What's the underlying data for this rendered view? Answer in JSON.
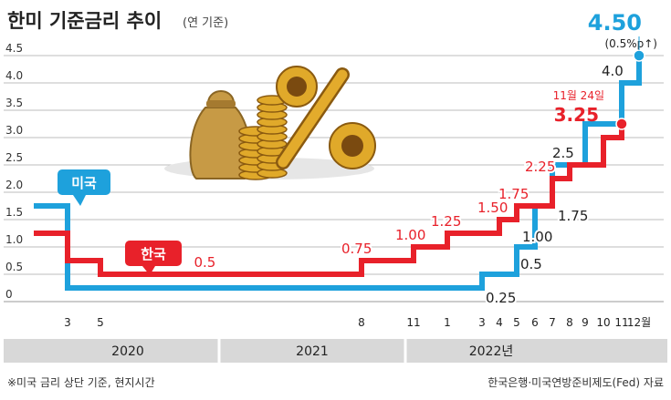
{
  "header": {
    "title": "한미 기준금리 추이",
    "unit": "(연 기준)"
  },
  "chart_data": {
    "type": "line",
    "step": true,
    "ylim": [
      0,
      4.5
    ],
    "y_ticks": [
      "0",
      "0.5",
      "1.0",
      "1.5",
      "2.0",
      "2.5",
      "3.0",
      "3.5",
      "4.0",
      "4.5"
    ],
    "x_month_ticks": [
      {
        "label": "3",
        "t": "2020-03"
      },
      {
        "label": "5",
        "t": "2020-05"
      },
      {
        "label": "8",
        "t": "2021-08"
      },
      {
        "label": "11",
        "t": "2021-11"
      },
      {
        "label": "1",
        "t": "2022-01"
      },
      {
        "label": "3",
        "t": "2022-03"
      },
      {
        "label": "4",
        "t": "2022-04"
      },
      {
        "label": "5",
        "t": "2022-05"
      },
      {
        "label": "6",
        "t": "2022-06"
      },
      {
        "label": "7",
        "t": "2022-07"
      },
      {
        "label": "8",
        "t": "2022-08"
      },
      {
        "label": "9",
        "t": "2022-09"
      },
      {
        "label": "10",
        "t": "2022-10"
      },
      {
        "label": "11",
        "t": "2022-11"
      },
      {
        "label": "12월",
        "t": "2022-12"
      }
    ],
    "year_labels": [
      "2020",
      "2021",
      "2022년"
    ],
    "series": [
      {
        "name": "미국",
        "color": "#1ea1dc",
        "points": [
          {
            "t": "2020-01",
            "v": 1.75
          },
          {
            "t": "2020-03",
            "v": 0.25
          },
          {
            "t": "2022-03",
            "v": 0.5
          },
          {
            "t": "2022-05",
            "v": 1.0
          },
          {
            "t": "2022-06",
            "v": 1.75
          },
          {
            "t": "2022-07",
            "v": 2.5
          },
          {
            "t": "2022-09",
            "v": 3.25
          },
          {
            "t": "2022-11",
            "v": 4.0
          },
          {
            "t": "2022-12",
            "v": 4.5
          }
        ],
        "value_labels": [
          {
            "t": "2022-03",
            "v": 0.25,
            "text": "0.25"
          },
          {
            "t": "2022-05",
            "v": 0.5,
            "text": "0.5"
          },
          {
            "t": "2022-05",
            "v": 1.0,
            "text": "1.00"
          },
          {
            "t": "2022-07",
            "v": 1.75,
            "text": "1.75"
          },
          {
            "t": "2022-07",
            "v": 2.5,
            "text": "2.5"
          },
          {
            "t": "2022-11",
            "v": 4.0,
            "text": "4.0"
          }
        ]
      },
      {
        "name": "한국",
        "color": "#e8212a",
        "points": [
          {
            "t": "2020-01",
            "v": 1.25
          },
          {
            "t": "2020-03",
            "v": 0.75
          },
          {
            "t": "2020-05",
            "v": 0.5
          },
          {
            "t": "2021-08",
            "v": 0.75
          },
          {
            "t": "2021-11",
            "v": 1.0
          },
          {
            "t": "2022-01",
            "v": 1.25
          },
          {
            "t": "2022-04",
            "v": 1.5
          },
          {
            "t": "2022-05",
            "v": 1.75
          },
          {
            "t": "2022-07",
            "v": 2.25
          },
          {
            "t": "2022-08",
            "v": 2.5
          },
          {
            "t": "2022-10",
            "v": 3.0
          },
          {
            "t": "2022-11",
            "v": 3.25
          }
        ],
        "value_labels": [
          {
            "t": "2020-11",
            "v": 0.5,
            "text": "0.5"
          },
          {
            "t": "2021-08",
            "v": 0.75,
            "text": "0.75"
          },
          {
            "t": "2021-11",
            "v": 1.0,
            "text": "1.00"
          },
          {
            "t": "2022-01",
            "v": 1.25,
            "text": "1.25"
          },
          {
            "t": "2022-04",
            "v": 1.5,
            "text": "1.50"
          },
          {
            "t": "2022-05",
            "v": 1.75,
            "text": "1.75"
          },
          {
            "t": "2022-07",
            "v": 2.25,
            "text": "2.25"
          }
        ]
      }
    ],
    "annotations": {
      "us_latest": "4.50",
      "us_change": "(0.5%p↑)",
      "kr_date": "11월 24일",
      "kr_latest": "3.25"
    }
  },
  "footer": {
    "note": "※미국 금리 상단 기준, 현지시간",
    "source": "한국은행·미국연방준비제도(Fed) 자료"
  }
}
